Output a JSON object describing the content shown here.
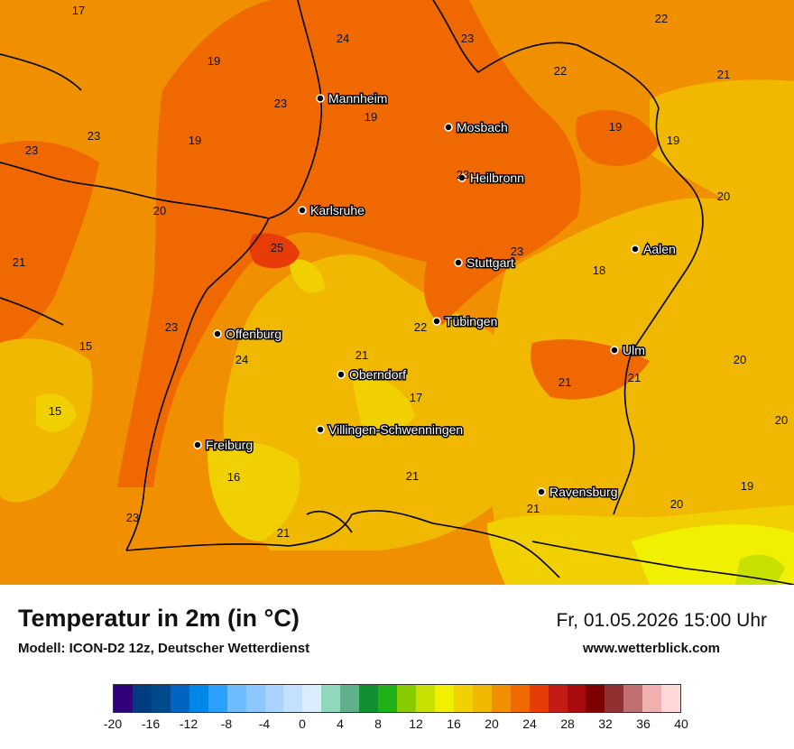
{
  "map": {
    "cities": [
      {
        "name": "Mannheim",
        "label": "Mannheim"
      },
      {
        "name": "Mosbach",
        "label": "Mosbach"
      },
      {
        "name": "Heilbronn",
        "label": "Heilbronn"
      },
      {
        "name": "Karlsruhe",
        "label": "Karlsruhe"
      },
      {
        "name": "Aalen",
        "label": "Aalen"
      },
      {
        "name": "Stuttgart",
        "label": "Stuttgart"
      },
      {
        "name": "Tübingen",
        "label": "Tübingen"
      },
      {
        "name": "Offenburg",
        "label": "Offenburg"
      },
      {
        "name": "Ulm",
        "label": "Ulm"
      },
      {
        "name": "Oberndorf",
        "label": "Oberndorf"
      },
      {
        "name": "Villingen-Schwenningen",
        "label": "Villingen-Schwenningen"
      },
      {
        "name": "Freiburg",
        "label": "Freiburg"
      },
      {
        "name": "Ravensburg",
        "label": "Ravensburg"
      }
    ],
    "temperature_labels": [
      "17",
      "24",
      "23",
      "22",
      "19",
      "22",
      "21",
      "23",
      "19",
      "19",
      "23",
      "19",
      "19",
      "23",
      "20",
      "23",
      "20",
      "25",
      "23",
      "21",
      "18",
      "15",
      "23",
      "21",
      "24",
      "20",
      "21",
      "15",
      "17",
      "22",
      "20",
      "21",
      "16",
      "21",
      "21",
      "23",
      "19",
      "21",
      "20"
    ]
  },
  "footer": {
    "title": "Temperatur in 2m (in °C)",
    "model": "Modell: ICON-D2 12z, Deutscher Wetterdienst",
    "datetime": "Fr, 01.05.2026 15:00 Uhr",
    "site": "www.wetterblick.com"
  },
  "legend": {
    "colors": [
      "#30007a",
      "#003c80",
      "#004a8c",
      "#0064c0",
      "#0088e8",
      "#2aa0ff",
      "#6cbcff",
      "#8cc8ff",
      "#a8d4ff",
      "#c4e0ff",
      "#dcecff",
      "#90d8bc",
      "#60b08c",
      "#109030",
      "#20b018",
      "#88cc00",
      "#c8e000",
      "#f0f000",
      "#f0d000",
      "#f0b800",
      "#f09000",
      "#f06800",
      "#e83c08",
      "#c41c14",
      "#a80c10",
      "#800000",
      "#903030",
      "#c07070",
      "#f0b0b0",
      "#ffd8d8"
    ],
    "ticks": [
      "-20",
      "-16",
      "-12",
      "-8",
      "-4",
      "0",
      "4",
      "8",
      "12",
      "16",
      "20",
      "24",
      "28",
      "32",
      "36",
      "40"
    ]
  }
}
